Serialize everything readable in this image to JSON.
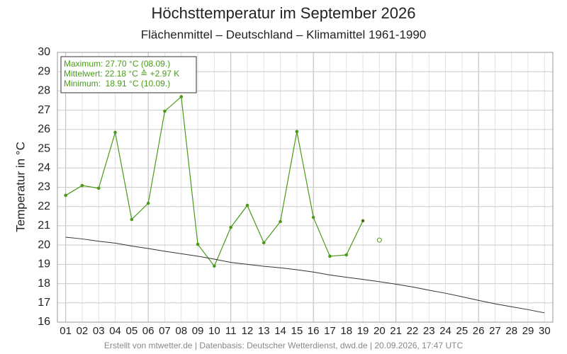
{
  "chart_data": {
    "type": "line",
    "title": "Höchsttemperatur im September 2026",
    "subtitle": "Flächenmittel – Deutschland – Klimamittel 1961-1990",
    "y_label": "Temperatur in °C",
    "footer": "Erstellt von mtwetter.de | Datenbasis: Deutscher Wetterdienst, dwd.de | 20.09.2026, 17:47 UTC",
    "annotations": [
      "Maximum: 27.70 °C (08.09.)",
      "Mittelwert: 22.18 °C ≙ +2.97 K",
      "Minimum:  18.91 °C (10.09.)"
    ],
    "categories": [
      "01",
      "02",
      "03",
      "04",
      "05",
      "06",
      "07",
      "08",
      "09",
      "10",
      "11",
      "12",
      "13",
      "14",
      "15",
      "16",
      "17",
      "18",
      "19",
      "20",
      "21",
      "22",
      "23",
      "24",
      "25",
      "26",
      "27",
      "28",
      "29",
      "30"
    ],
    "series": [
      {
        "color": "#4a9a1a",
        "values": [
          22.58,
          23.09,
          22.95,
          25.85,
          21.33,
          22.17,
          26.95,
          27.7,
          20.04,
          18.91,
          20.92,
          22.06,
          20.12,
          21.22,
          25.89,
          21.44,
          19.42,
          19.49,
          21.26,
          null,
          null,
          null,
          null,
          null,
          null,
          null,
          null,
          null,
          null,
          null
        ]
      },
      {
        "color": "#4a9a1a",
        "marker": "open",
        "values": [
          null,
          null,
          null,
          null,
          null,
          null,
          null,
          null,
          null,
          null,
          null,
          null,
          null,
          null,
          null,
          null,
          null,
          null,
          null,
          20.26,
          null,
          null,
          null,
          null,
          null,
          null,
          null,
          null,
          null,
          null
        ]
      },
      {
        "color": "#333333",
        "values": [
          20.41,
          20.32,
          20.2,
          20.1,
          19.95,
          19.82,
          19.68,
          19.55,
          19.42,
          19.27,
          19.1,
          19.0,
          18.9,
          18.82,
          18.72,
          18.6,
          18.45,
          18.33,
          18.22,
          18.1,
          17.97,
          17.83,
          17.66,
          17.5,
          17.32,
          17.13,
          16.95,
          16.8,
          16.65,
          16.48
        ]
      }
    ],
    "ylim": [
      16,
      30
    ],
    "yticks": [
      16,
      17,
      18,
      19,
      20,
      21,
      22,
      23,
      24,
      25,
      26,
      27,
      28,
      29,
      30
    ],
    "grid": true
  }
}
